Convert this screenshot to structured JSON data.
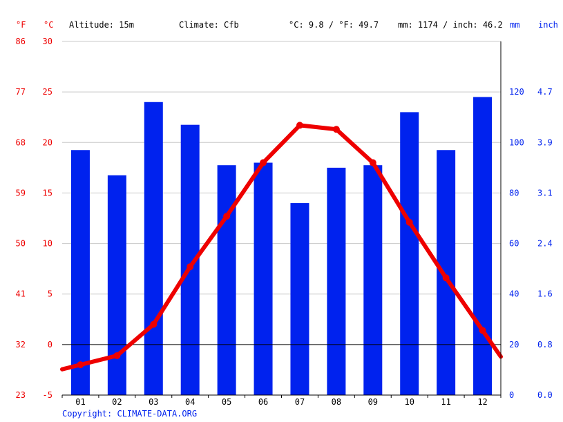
{
  "header": {
    "unit_f": "°F",
    "unit_c": "°C",
    "altitude": "Altitude: 15m",
    "climate": "Climate: Cfb",
    "avg_temp": "°C: 9.8 / °F: 49.7",
    "precip_total": "mm: 1174 / inch: 46.2",
    "unit_mm": "mm",
    "unit_inch": "inch"
  },
  "footer": {
    "copyright": "Copyright: CLIMATE-DATA.ORG"
  },
  "colors": {
    "temperature": "#ee0000",
    "precipitation": "#0022ee",
    "grid": "#c8c8c8"
  },
  "chart_data": {
    "type": "bar",
    "categories": [
      "01",
      "02",
      "03",
      "04",
      "05",
      "06",
      "07",
      "08",
      "09",
      "10",
      "11",
      "12"
    ],
    "series": [
      {
        "type": "bar",
        "axis": "right",
        "values": [
          97,
          87,
          116,
          107,
          91,
          92,
          76,
          90,
          91,
          112,
          97,
          118
        ]
      },
      {
        "type": "line",
        "axis": "left",
        "values": [
          -2.0,
          -1.1,
          2.0,
          7.7,
          12.7,
          18.0,
          21.7,
          21.3,
          18.0,
          12.1,
          6.6,
          1.4
        ]
      }
    ],
    "left_axis": {
      "ylim": [
        -5,
        30
      ],
      "celsius_ticks": [
        "-5",
        "0",
        "5",
        "10",
        "15",
        "20",
        "25",
        "30"
      ],
      "fahrenheit_ticks": [
        "23",
        "32",
        "41",
        "50",
        "59",
        "68",
        "77",
        "86"
      ]
    },
    "right_axis": {
      "ylim": [
        0,
        140
      ],
      "mm_ticks": [
        "0",
        "20",
        "40",
        "60",
        "80",
        "100",
        "120"
      ],
      "inch_ticks": [
        "0.0",
        "0.8",
        "1.6",
        "2.4",
        "3.1",
        "3.9",
        "4.7"
      ]
    },
    "grid": true
  }
}
